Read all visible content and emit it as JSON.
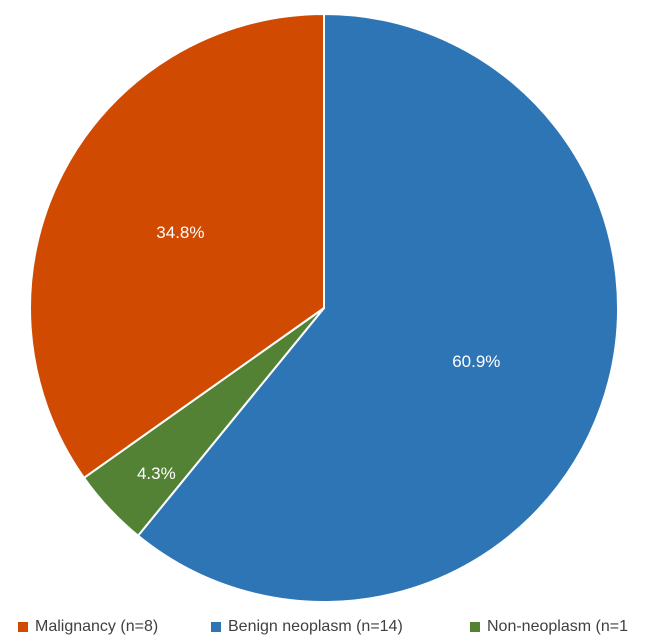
{
  "chart_data": {
    "type": "pie",
    "title": "",
    "slices": [
      {
        "label": "Benign neoplasm (n=14)",
        "value": 60.9,
        "data_label": "60.9%",
        "color": "#2E75B6"
      },
      {
        "label": "Non-neoplasm (n=1",
        "value": 4.3,
        "data_label": "4.3%",
        "color": "#548235"
      },
      {
        "label": "Malignancy (n=8)",
        "value": 34.8,
        "data_label": "34.8%",
        "color": "#D04A02"
      }
    ],
    "start_angle_deg": 0,
    "direction": "clockwise",
    "legend": {
      "position": "bottom",
      "entries": [
        {
          "label": "Malignancy (n=8)",
          "color": "#D04A02"
        },
        {
          "label": "Benign neoplasm (n=14)",
          "color": "#2E75B6"
        },
        {
          "label": "Non-neoplasm (n=1",
          "color": "#548235"
        }
      ]
    }
  }
}
